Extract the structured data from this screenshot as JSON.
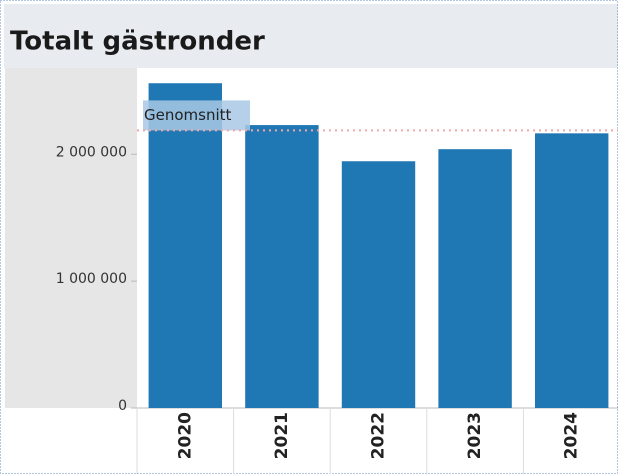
{
  "chart_data": {
    "type": "bar",
    "title": "Totalt gästronder",
    "categories": [
      "2020",
      "2021",
      "2022",
      "2023",
      "2024"
    ],
    "values": [
      2560000,
      2230000,
      1945000,
      2040000,
      2165000
    ],
    "color": "#1f77b4",
    "ylim": [
      0,
      2680000
    ],
    "yticks": [
      0,
      {
        "value": 1000000,
        "label": "1 000 000"
      },
      {
        "value": 2000000,
        "label": "2 000 000"
      }
    ],
    "reference_line": {
      "label": "Genomsnitt",
      "value": 2188000,
      "color": "#f4a6a6"
    }
  }
}
